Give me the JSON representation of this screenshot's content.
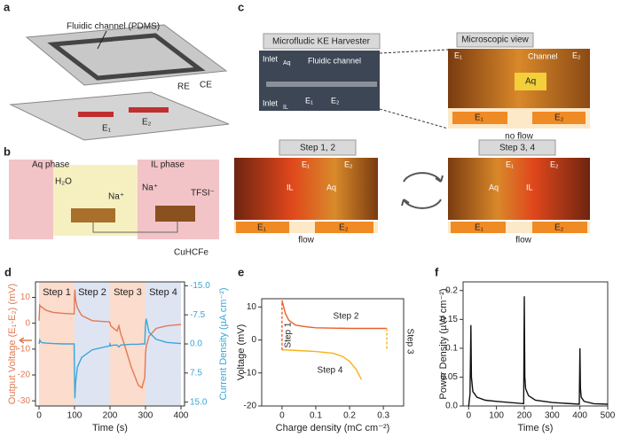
{
  "panels": {
    "a": {
      "label": "a",
      "channel": "Fluidic channel (PDMS)",
      "re": "RE",
      "ce": "CE",
      "e1": "E₁",
      "e2": "E₂"
    },
    "b": {
      "label": "b",
      "aq": "Aq phase",
      "il": "IL phase",
      "water": "H₂O",
      "na1": "Na⁺",
      "na2": "Na⁺",
      "tfsi": "TFSI⁻",
      "cuhcfe": "CuHCFe"
    },
    "c": {
      "label": "c",
      "overview": {
        "title": "Microfludic KE Harvester",
        "inlet_aq": "Inlet",
        "inlet_aq_sub": "Aq",
        "inlet_il": "Inlet",
        "inlet_il_sub": "IL",
        "channel": "Fluidic channel",
        "e1": "E₁",
        "e2": "E₂"
      },
      "micro": {
        "title": "Microscopic view",
        "e1": "E₁",
        "e2": "E₂",
        "channel": "Channel",
        "phase": "Aq",
        "bar_e1": "E₁",
        "bar_e2": "E₂",
        "caption": "no flow"
      },
      "step12": {
        "title": "Step 1, 2",
        "e1": "E₁",
        "e2": "E₂",
        "phase1": "IL",
        "phase2": "Aq",
        "bar_e1": "E₁",
        "bar_e2": "E₂",
        "caption": "flow"
      },
      "step34": {
        "title": "Step 3, 4",
        "e1": "E₁",
        "e2": "E₂",
        "phase1": "Aq",
        "phase2": "IL",
        "bar_e1": "E₁",
        "bar_e2": "E₂",
        "caption": "flow"
      }
    }
  },
  "chart_data": [
    {
      "type": "line",
      "label": "d",
      "xlabel": "Time (s)",
      "ylabel": "Output Voltage (E₁-E₂) (mV)",
      "y2label": "Current Density (µA cm⁻²)",
      "xlim": [
        -10,
        410
      ],
      "xticks": [
        0,
        100,
        200,
        300,
        400
      ],
      "ylim": [
        -32,
        16
      ],
      "yticks": [
        -30,
        -20,
        -10,
        0,
        10
      ],
      "y2lim": [
        16,
        -16
      ],
      "y2ticks": [
        {
          "value": -15,
          "label": "-15.0"
        },
        -7.5,
        {
          "value": 0,
          "label": "0.0"
        },
        7.5,
        {
          "value": 15,
          "label": "15.0"
        }
      ],
      "regions": [
        {
          "label": "Step 1",
          "range": [
            0,
            100
          ],
          "color": "#fbdccd"
        },
        {
          "label": "Step 2",
          "range": [
            100,
            200
          ],
          "color": "#dfe4f3"
        },
        {
          "label": "Step 3",
          "range": [
            200,
            300
          ],
          "color": "#fbdccd"
        },
        {
          "label": "Step 4",
          "range": [
            300,
            400
          ],
          "color": "#dfe4f3"
        }
      ],
      "x": [
        0,
        2,
        5,
        10,
        20,
        40,
        70,
        99,
        100,
        101,
        103,
        108,
        120,
        150,
        199,
        200,
        202,
        210,
        220,
        225,
        230,
        240,
        260,
        280,
        290,
        298,
        300,
        302,
        310,
        330,
        360,
        400
      ],
      "series": [
        {
          "color": "#e07a52",
          "values": [
            1,
            7,
            6.5,
            6,
            5,
            4.2,
            3.8,
            3.6,
            10,
            13,
            9,
            6,
            3,
            1,
            0.5,
            0,
            -1,
            -2,
            -3,
            -1,
            -4,
            -8,
            -17,
            -24,
            -25,
            -21,
            -12,
            -9,
            -5,
            -2,
            -1,
            -0.5
          ]
        },
        {
          "color": "#3aa6d8",
          "axis": "y2",
          "values": [
            0,
            -1,
            -0.5,
            -0.3,
            -0.2,
            -0.1,
            0,
            0,
            8,
            14,
            10,
            6,
            3.5,
            1.5,
            0.5,
            0,
            0.5,
            0.3,
            0.3,
            0.8,
            0.3,
            0.2,
            0.1,
            0.1,
            0,
            0,
            -5,
            -6.5,
            -3,
            -1.2,
            -0.4,
            -0.1
          ]
        }
      ]
    },
    {
      "type": "line",
      "label": "e",
      "xlabel": "Charge density (mC cm⁻²)",
      "ylabel": "Voltage (mV)",
      "xlim": [
        -0.06,
        0.36
      ],
      "xticks": [
        0,
        0.1,
        0.2,
        0.3
      ],
      "ylim": [
        -20,
        12.5
      ],
      "yticks": [
        -20,
        -10,
        0,
        10
      ],
      "series": [
        {
          "name": "Step 2",
          "color": "#e8602c",
          "x": [
            0,
            0.005,
            0.01,
            0.02,
            0.04,
            0.07,
            0.1,
            0.2,
            0.31
          ],
          "values": [
            12,
            10,
            8,
            6,
            4.5,
            4,
            3.7,
            3.5,
            3.5
          ]
        },
        {
          "name": "Step 4",
          "color": "#f5b21b",
          "x": [
            0,
            0.05,
            0.1,
            0.15,
            0.18,
            0.2,
            0.22,
            0.235
          ],
          "values": [
            -3,
            -3.2,
            -3.5,
            -4,
            -5,
            -6.5,
            -9,
            -12
          ]
        },
        {
          "name": "Step 3",
          "color": "#f5b21b",
          "dash": true,
          "x": [
            0.31,
            0.31
          ],
          "values": [
            3.5,
            -3
          ]
        },
        {
          "name": "Step 1",
          "color": "#e8602c",
          "dash": true,
          "x": [
            0,
            0
          ],
          "values": [
            -3,
            12
          ]
        }
      ]
    },
    {
      "type": "line",
      "label": "f",
      "xlabel": "Time (s)",
      "ylabel": "Power Density (µW cm⁻²)",
      "xlim": [
        -20,
        500
      ],
      "xticks": [
        0,
        100,
        200,
        300,
        400,
        500
      ],
      "ylim": [
        0,
        0.215
      ],
      "yticks": [
        {
          "value": 0,
          "label": "0.0"
        },
        0.05,
        0.1,
        0.15,
        0.2
      ],
      "x": [
        0,
        5,
        8,
        10,
        15,
        30,
        60,
        100,
        198,
        200,
        202,
        205,
        215,
        240,
        300,
        398,
        400,
        402,
        405,
        415,
        450,
        500
      ],
      "series": [
        {
          "color": "#111111",
          "values": [
            0,
            0.02,
            0.14,
            0.05,
            0.025,
            0.015,
            0.01,
            0.008,
            0.004,
            0.19,
            0.05,
            0.03,
            0.018,
            0.01,
            0.006,
            0.003,
            0.1,
            0.03,
            0.015,
            0.008,
            0.004,
            0.003
          ]
        }
      ]
    }
  ]
}
